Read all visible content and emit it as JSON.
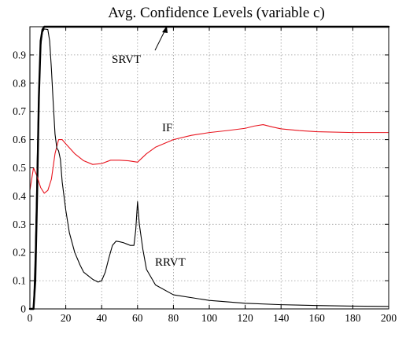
{
  "chart_data": {
    "type": "line",
    "title": "Avg. Confidence Levels (variable c)",
    "xlabel": "",
    "ylabel": "",
    "xlim": [
      0,
      200
    ],
    "ylim": [
      0,
      1
    ],
    "grid": true,
    "x_ticks": [
      0,
      20,
      40,
      60,
      80,
      100,
      120,
      140,
      160,
      180,
      200
    ],
    "y_ticks": [
      0,
      0.1,
      0.2,
      0.3,
      0.4,
      0.5,
      0.6,
      0.7,
      0.8,
      0.9
    ],
    "y_tick_labels": [
      "0",
      "0.1",
      "0.2",
      "0.3",
      "0.4",
      "0.5",
      "0.6",
      "0.7",
      "0.8",
      "0.9"
    ],
    "annotations": [
      "SRVT",
      "IF",
      "RRVT"
    ],
    "series": [
      {
        "name": "SRVT",
        "color": "#000000",
        "points": [
          [
            0,
            0
          ],
          [
            2,
            0
          ],
          [
            3,
            0.1
          ],
          [
            4,
            0.4
          ],
          [
            5,
            0.75
          ],
          [
            6,
            0.95
          ],
          [
            7,
            0.99
          ],
          [
            8,
            1.0
          ],
          [
            200,
            1.0
          ]
        ]
      },
      {
        "name": "IF",
        "color": "#e8141e",
        "points": [
          [
            0,
            0.42
          ],
          [
            2,
            0.5
          ],
          [
            4,
            0.47
          ],
          [
            6,
            0.43
          ],
          [
            8,
            0.41
          ],
          [
            10,
            0.42
          ],
          [
            12,
            0.46
          ],
          [
            14,
            0.55
          ],
          [
            16,
            0.6
          ],
          [
            18,
            0.6
          ],
          [
            20,
            0.585
          ],
          [
            25,
            0.55
          ],
          [
            30,
            0.525
          ],
          [
            35,
            0.512
          ],
          [
            40,
            0.515
          ],
          [
            45,
            0.527
          ],
          [
            50,
            0.527
          ],
          [
            55,
            0.525
          ],
          [
            60,
            0.52
          ],
          [
            65,
            0.55
          ],
          [
            70,
            0.573
          ],
          [
            80,
            0.6
          ],
          [
            90,
            0.615
          ],
          [
            100,
            0.625
          ],
          [
            110,
            0.632
          ],
          [
            120,
            0.64
          ],
          [
            125,
            0.648
          ],
          [
            130,
            0.653
          ],
          [
            135,
            0.645
          ],
          [
            140,
            0.638
          ],
          [
            150,
            0.632
          ],
          [
            160,
            0.628
          ],
          [
            180,
            0.625
          ],
          [
            200,
            0.625
          ]
        ]
      },
      {
        "name": "RRVT",
        "color": "#000000",
        "points": [
          [
            0,
            0
          ],
          [
            2,
            0
          ],
          [
            3,
            0.2
          ],
          [
            4,
            0.5
          ],
          [
            5,
            0.78
          ],
          [
            6,
            0.93
          ],
          [
            7,
            0.98
          ],
          [
            8,
            0.992
          ],
          [
            10,
            0.99
          ],
          [
            11,
            0.95
          ],
          [
            12,
            0.85
          ],
          [
            13,
            0.73
          ],
          [
            14,
            0.62
          ],
          [
            15,
            0.57
          ],
          [
            16,
            0.56
          ],
          [
            17,
            0.53
          ],
          [
            18,
            0.45
          ],
          [
            20,
            0.35
          ],
          [
            22,
            0.27
          ],
          [
            25,
            0.2
          ],
          [
            28,
            0.155
          ],
          [
            30,
            0.13
          ],
          [
            35,
            0.105
          ],
          [
            38,
            0.095
          ],
          [
            40,
            0.1
          ],
          [
            42,
            0.13
          ],
          [
            44,
            0.18
          ],
          [
            46,
            0.225
          ],
          [
            48,
            0.24
          ],
          [
            50,
            0.238
          ],
          [
            52,
            0.235
          ],
          [
            54,
            0.23
          ],
          [
            56,
            0.225
          ],
          [
            58,
            0.225
          ],
          [
            59,
            0.28
          ],
          [
            60,
            0.38
          ],
          [
            61,
            0.3
          ],
          [
            63,
            0.21
          ],
          [
            65,
            0.14
          ],
          [
            70,
            0.085
          ],
          [
            80,
            0.05
          ],
          [
            100,
            0.03
          ],
          [
            120,
            0.02
          ],
          [
            140,
            0.015
          ],
          [
            160,
            0.012
          ],
          [
            180,
            0.01
          ],
          [
            200,
            0.009
          ]
        ]
      }
    ]
  }
}
